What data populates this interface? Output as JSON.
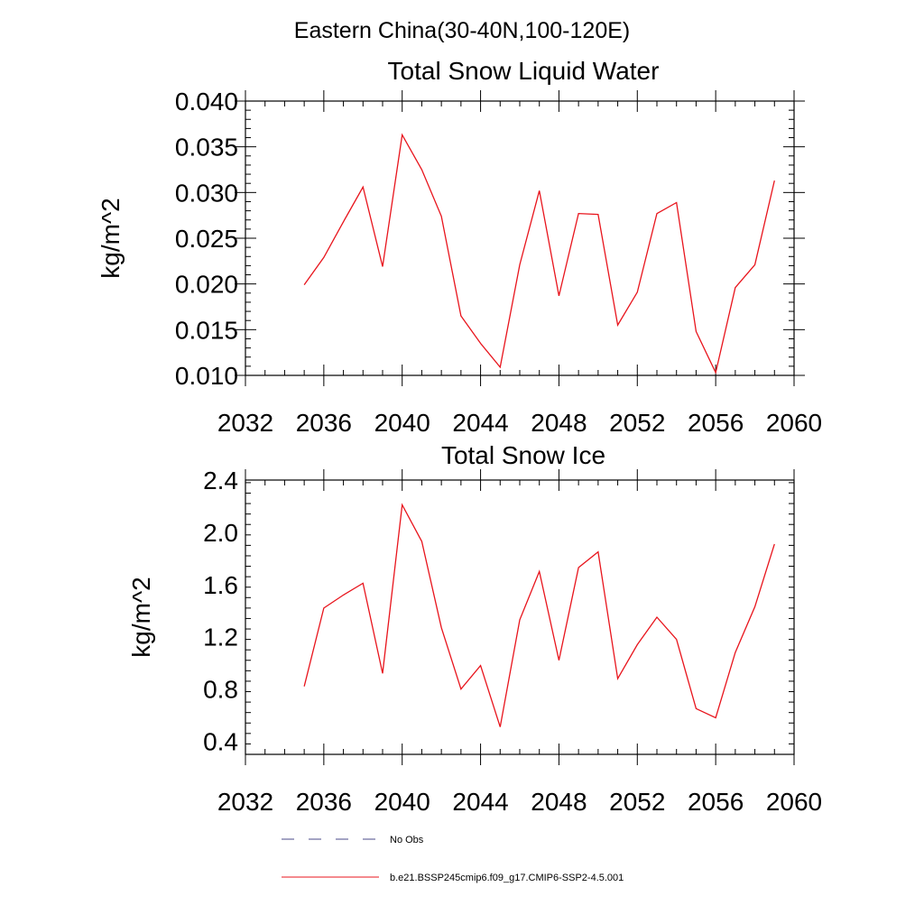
{
  "figure": {
    "suptitle": "Eastern China(30-40N,100-120E)"
  },
  "legend": {
    "items": [
      {
        "label": "No Obs",
        "style": "dashed",
        "color": "#4a4a8a"
      },
      {
        "label": "b.e21.BSSP245cmip6.f09_g17.CMIP6-SSP2-4.5.001",
        "style": "solid",
        "color": "#e8141c"
      }
    ]
  },
  "chart_data": [
    {
      "type": "line",
      "title": "Total Snow Liquid Water",
      "xlabel": "",
      "ylabel": "kg/m^2",
      "xlim": [
        2032,
        2060
      ],
      "ylim": [
        0.01,
        0.04
      ],
      "xticks": [
        "2032",
        "2036",
        "2040",
        "2044",
        "2048",
        "2052",
        "2056",
        "2060"
      ],
      "yticks": [
        "0.010",
        "0.015",
        "0.020",
        "0.025",
        "0.030",
        "0.035",
        "0.040"
      ],
      "grid": false,
      "series": [
        {
          "name": "b.e21.BSSP245cmip6.f09_g17.CMIP6-SSP2-4.5.001",
          "color": "#e8141c",
          "x": [
            2035,
            2036,
            2037,
            2038,
            2039,
            2040,
            2041,
            2042,
            2043,
            2044,
            2045,
            2046,
            2047,
            2048,
            2049,
            2050,
            2051,
            2052,
            2053,
            2054,
            2055,
            2056,
            2057,
            2058,
            2059
          ],
          "values": [
            0.0199,
            0.0229,
            0.0268,
            0.0306,
            0.0219,
            0.0363,
            0.0325,
            0.0274,
            0.0165,
            0.0135,
            0.0109,
            0.0221,
            0.0302,
            0.0187,
            0.0277,
            0.0276,
            0.0155,
            0.0191,
            0.0277,
            0.0289,
            0.0148,
            0.0103,
            0.0196,
            0.0221,
            0.0313
          ]
        }
      ]
    },
    {
      "type": "line",
      "title": "Total Snow Ice",
      "xlabel": "",
      "ylabel": "kg/m^2",
      "xlim": [
        2032,
        2060
      ],
      "ylim": [
        0.3,
        2.4
      ],
      "xticks": [
        "2032",
        "2036",
        "2040",
        "2044",
        "2048",
        "2052",
        "2056",
        "2060"
      ],
      "yticks": [
        "0.4",
        "0.8",
        "1.2",
        "1.6",
        "2.0",
        "2.4"
      ],
      "grid": false,
      "series": [
        {
          "name": "b.e21.BSSP245cmip6.f09_g17.CMIP6-SSP2-4.5.001",
          "color": "#e8141c",
          "x": [
            2035,
            2036,
            2037,
            2038,
            2039,
            2040,
            2041,
            2042,
            2043,
            2044,
            2045,
            2046,
            2047,
            2048,
            2049,
            2050,
            2051,
            2052,
            2053,
            2054,
            2055,
            2056,
            2057,
            2058,
            2059
          ],
          "values": [
            0.82,
            1.42,
            1.52,
            1.61,
            0.92,
            2.21,
            1.93,
            1.27,
            0.8,
            0.98,
            0.51,
            1.33,
            1.7,
            1.02,
            1.73,
            1.85,
            0.88,
            1.14,
            1.35,
            1.18,
            0.65,
            0.58,
            1.08,
            1.43,
            1.91
          ]
        }
      ]
    }
  ]
}
